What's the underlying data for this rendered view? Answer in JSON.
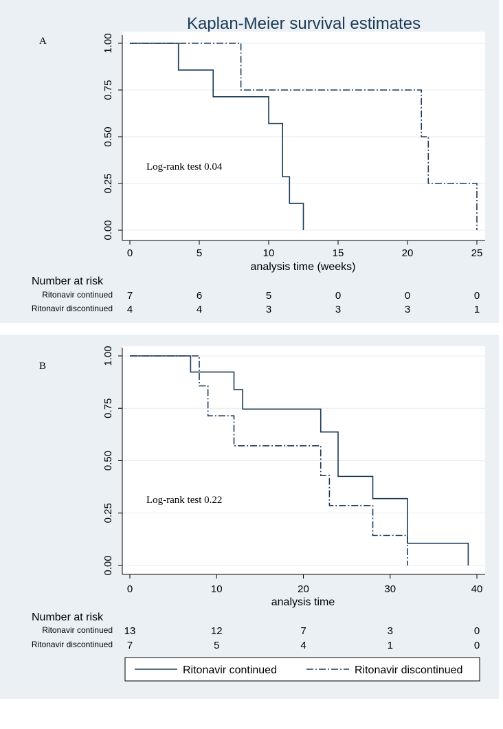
{
  "title": "Kaplan-Meier survival estimates",
  "legend": {
    "continued": "Ritonavir continued",
    "discontinued": "Ritonavir discontinued"
  },
  "chart_data": [
    {
      "type": "line",
      "panel": "A",
      "title": "Kaplan-Meier survival estimates",
      "xlabel": "analysis time (weeks)",
      "ylabel": "",
      "xlim": [
        0,
        25
      ],
      "ylim": [
        0,
        1
      ],
      "xticks": [
        0,
        5,
        10,
        15,
        20,
        25
      ],
      "yticks": [
        "0.00",
        "0.25",
        "0.50",
        "0.75",
        "1.00"
      ],
      "annotation": "Log-rank test 0.04",
      "series": [
        {
          "name": "Ritonavir continued",
          "style": "solid",
          "steps": [
            [
              0,
              1.0
            ],
            [
              3.5,
              0.857
            ],
            [
              6,
              0.714
            ],
            [
              10,
              0.571
            ],
            [
              11,
              0.286
            ],
            [
              11.5,
              0.143
            ],
            [
              12.5,
              0.0
            ]
          ]
        },
        {
          "name": "Ritonavir discontinued",
          "style": "dashdot",
          "steps": [
            [
              0,
              1.0
            ],
            [
              8,
              0.75
            ],
            [
              21,
              0.5
            ],
            [
              21.5,
              0.25
            ],
            [
              25,
              0.0
            ]
          ]
        }
      ],
      "risk_table": {
        "heading": "Number at risk",
        "times": [
          0,
          5,
          10,
          15,
          20,
          25
        ],
        "rows": [
          {
            "label": "Ritonavir continued",
            "values": [
              "7",
              "6",
              "5",
              "0",
              "0",
              "0"
            ]
          },
          {
            "label": "Ritonavir discontinued",
            "values": [
              "4",
              "4",
              "3",
              "3",
              "3",
              "1"
            ]
          }
        ]
      }
    },
    {
      "type": "line",
      "panel": "B",
      "xlabel": "analysis time",
      "ylabel": "",
      "xlim": [
        0,
        40
      ],
      "ylim": [
        0,
        1
      ],
      "xticks": [
        0,
        10,
        20,
        30,
        40
      ],
      "yticks": [
        "0.00",
        "0.25",
        "0.50",
        "0.75",
        "1.00"
      ],
      "annotation": "Log-rank test 0.22",
      "series": [
        {
          "name": "Ritonavir continued",
          "style": "solid",
          "steps": [
            [
              0,
              1.0
            ],
            [
              7,
              0.923
            ],
            [
              12,
              0.839
            ],
            [
              13,
              0.746
            ],
            [
              22,
              0.637
            ],
            [
              24,
              0.425
            ],
            [
              28,
              0.319
            ],
            [
              32,
              0.106
            ],
            [
              39,
              0.0
            ]
          ]
        },
        {
          "name": "Ritonavir discontinued",
          "style": "dashdot",
          "steps": [
            [
              0,
              1.0
            ],
            [
              8,
              0.857
            ],
            [
              9,
              0.714
            ],
            [
              12,
              0.571
            ],
            [
              22,
              0.429
            ],
            [
              23,
              0.286
            ],
            [
              28,
              0.143
            ],
            [
              32,
              0.0
            ]
          ]
        }
      ],
      "risk_table": {
        "heading": "Number at risk",
        "times": [
          0,
          10,
          20,
          30,
          40
        ],
        "rows": [
          {
            "label": "Ritonavir continued",
            "values": [
              "13",
              "12",
              "7",
              "3",
              "0"
            ]
          },
          {
            "label": "Ritonavir discontinued",
            "values": [
              "7",
              "5",
              "4",
              "1",
              "0"
            ]
          }
        ]
      }
    }
  ]
}
